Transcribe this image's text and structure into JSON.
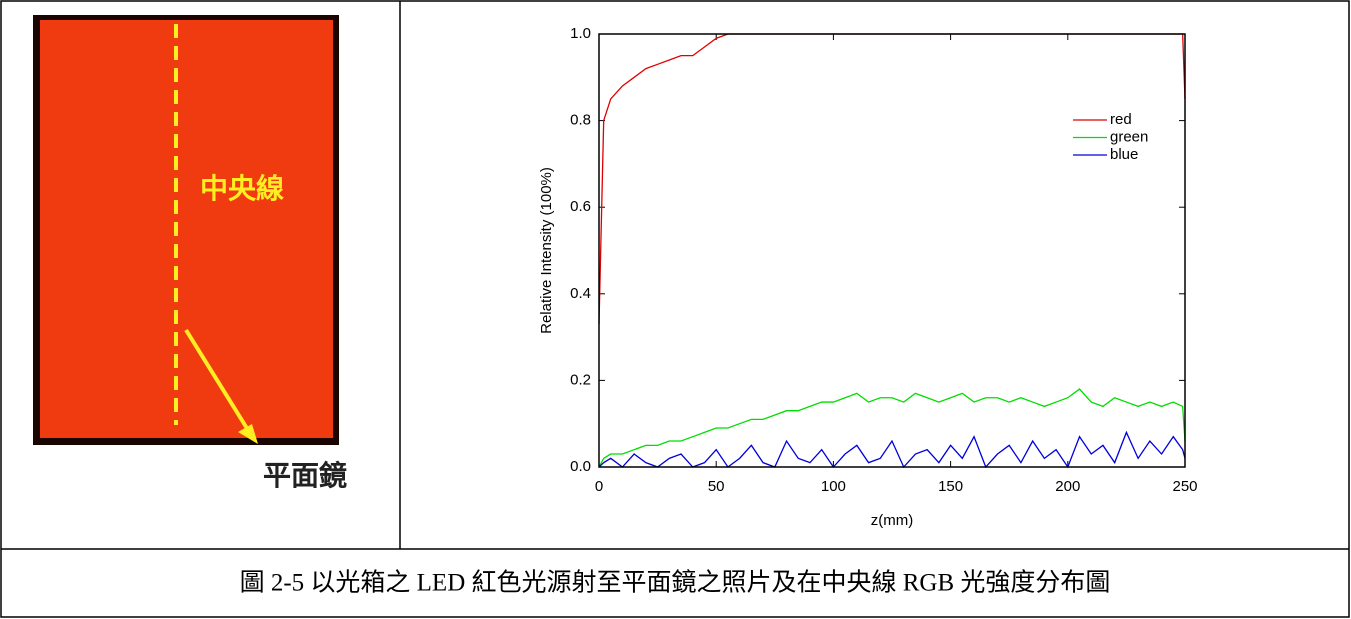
{
  "photo": {
    "center_line_label": "中央線",
    "mirror_label": "平面鏡"
  },
  "caption": "圖 2-5 以光箱之 LED 紅色光源射至平面鏡之照片及在中央線 RGB 光強度分布圖",
  "chart_data": {
    "type": "line",
    "xlabel": "z(mm)",
    "ylabel": "Relative Intensity (100%)",
    "xlim": [
      0,
      250
    ],
    "ylim": [
      0,
      1
    ],
    "xticks": [
      0,
      50,
      100,
      150,
      200,
      250
    ],
    "yticks": [
      {
        "value": 0,
        "label": "0.0"
      },
      0.2,
      0.4,
      0.6,
      0.8,
      {
        "value": 1,
        "label": "1.0"
      }
    ],
    "grid": false,
    "legend": "upper right",
    "x": [
      0,
      2,
      5,
      10,
      15,
      20,
      25,
      30,
      35,
      40,
      45,
      50,
      55,
      60,
      65,
      70,
      75,
      80,
      85,
      90,
      95,
      100,
      105,
      110,
      115,
      120,
      125,
      130,
      135,
      140,
      145,
      150,
      155,
      160,
      165,
      170,
      175,
      180,
      185,
      190,
      195,
      200,
      205,
      210,
      215,
      220,
      225,
      230,
      235,
      240,
      245,
      249,
      250
    ],
    "series": [
      {
        "name": "red",
        "color": "#e00000",
        "values": [
          0.33,
          0.8,
          0.85,
          0.88,
          0.9,
          0.92,
          0.93,
          0.94,
          0.95,
          0.95,
          0.97,
          0.99,
          1,
          1,
          1,
          1,
          1,
          1,
          1,
          1,
          1,
          1,
          1,
          1,
          1,
          1,
          1,
          1,
          1,
          1,
          1,
          1,
          1,
          1,
          1,
          1,
          1,
          1,
          1,
          1,
          1,
          1,
          1,
          1,
          1,
          1,
          1,
          1,
          1,
          1,
          1,
          1,
          0.85
        ]
      },
      {
        "name": "green",
        "color": "#00dd00",
        "values": [
          0,
          0.02,
          0.03,
          0.03,
          0.04,
          0.05,
          0.05,
          0.06,
          0.06,
          0.07,
          0.08,
          0.09,
          0.09,
          0.1,
          0.11,
          0.11,
          0.12,
          0.13,
          0.13,
          0.14,
          0.15,
          0.15,
          0.16,
          0.17,
          0.15,
          0.16,
          0.16,
          0.15,
          0.17,
          0.16,
          0.15,
          0.16,
          0.17,
          0.15,
          0.16,
          0.16,
          0.15,
          0.16,
          0.15,
          0.14,
          0.15,
          0.16,
          0.18,
          0.15,
          0.14,
          0.16,
          0.15,
          0.14,
          0.15,
          0.14,
          0.15,
          0.14,
          0.06
        ]
      },
      {
        "name": "blue",
        "color": "#0000dd",
        "values": [
          0,
          0.01,
          0.02,
          0,
          0.03,
          0.01,
          0,
          0.02,
          0.03,
          0,
          0.01,
          0.04,
          0,
          0.02,
          0.05,
          0.01,
          0,
          0.06,
          0.02,
          0.01,
          0.04,
          0,
          0.03,
          0.05,
          0.01,
          0.02,
          0.06,
          0,
          0.03,
          0.04,
          0.01,
          0.05,
          0.02,
          0.07,
          0,
          0.03,
          0.05,
          0.01,
          0.06,
          0.02,
          0.04,
          0,
          0.07,
          0.03,
          0.05,
          0.01,
          0.08,
          0.02,
          0.06,
          0.03,
          0.07,
          0.04,
          0.02
        ]
      }
    ]
  }
}
